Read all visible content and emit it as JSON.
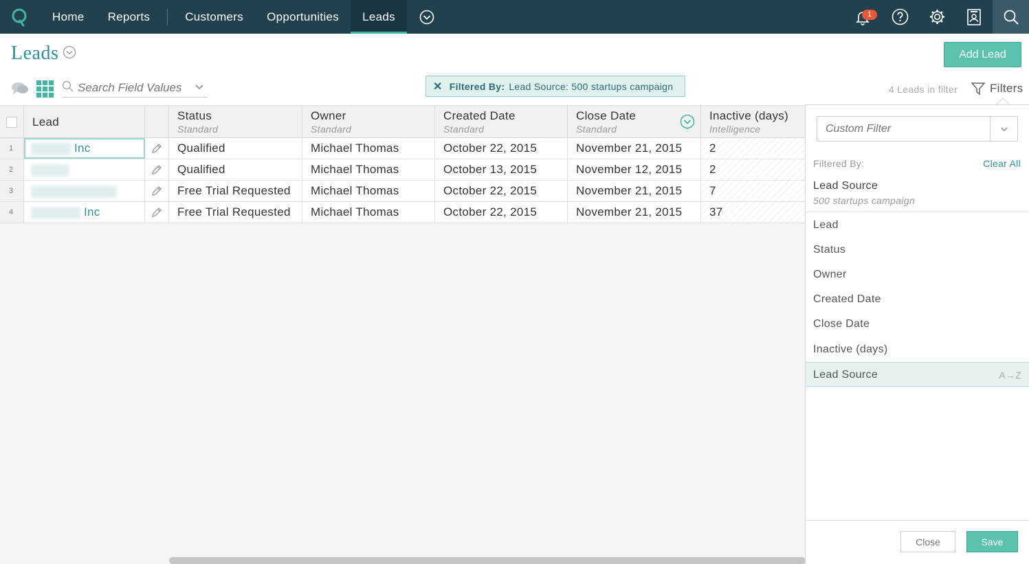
{
  "nav": {
    "items": [
      "Home",
      "Reports",
      "Customers",
      "Opportunities",
      "Leads"
    ],
    "active": "Leads",
    "notification_count": "1"
  },
  "page": {
    "title": "Leads",
    "add_button": "Add Lead"
  },
  "toolbar": {
    "search_placeholder": "Search Field Values",
    "filter_chip_label": "Filtered By:",
    "filter_chip_value": "Lead Source: 500 startups campaign",
    "count_text": "4 Leads in filter",
    "filters_label": "Filters"
  },
  "table": {
    "columns": [
      {
        "title": "Lead",
        "sub": ""
      },
      {
        "title": "Status",
        "sub": "Standard"
      },
      {
        "title": "Owner",
        "sub": "Standard"
      },
      {
        "title": "Created Date",
        "sub": "Standard"
      },
      {
        "title": "Close Date",
        "sub": "Standard"
      },
      {
        "title": "Inactive (days)",
        "sub": "Intelligence"
      }
    ],
    "rows": [
      {
        "num": "1",
        "lead_suffix": "Inc",
        "status": "Qualified",
        "owner": "Michael Thomas",
        "created": "October 22, 2015",
        "close": "November 21, 2015",
        "inactive": "2"
      },
      {
        "num": "2",
        "lead_suffix": "",
        "status": "Qualified",
        "owner": "Michael Thomas",
        "created": "October 13, 2015",
        "close": "November 12, 2015",
        "inactive": "2"
      },
      {
        "num": "3",
        "lead_suffix": "",
        "status": "Free Trial Requested",
        "owner": "Michael Thomas",
        "created": "October 22, 2015",
        "close": "November 21, 2015",
        "inactive": "7"
      },
      {
        "num": "4",
        "lead_suffix": "Inc",
        "status": "Free Trial Requested",
        "owner": "Michael Thomas",
        "created": "October 22, 2015",
        "close": "November 21, 2015",
        "inactive": "37"
      }
    ]
  },
  "panel": {
    "custom_filter_placeholder": "Custom Filter",
    "filtered_by_label": "Filtered By:",
    "clear_all": "Clear All",
    "applied_name": "Lead Source",
    "applied_value": "500 startups campaign",
    "fields": [
      "Lead",
      "Status",
      "Owner",
      "Created Date",
      "Close Date",
      "Inactive (days)",
      "Lead Source"
    ],
    "sort_hint": "A→Z",
    "close_label": "Close",
    "save_label": "Save"
  },
  "colors": {
    "nav_bg": "#21414f",
    "accent": "#41b6a3",
    "primary_button": "#5bc2ad",
    "link": "#2b8f9e",
    "badge": "#e8573a"
  }
}
